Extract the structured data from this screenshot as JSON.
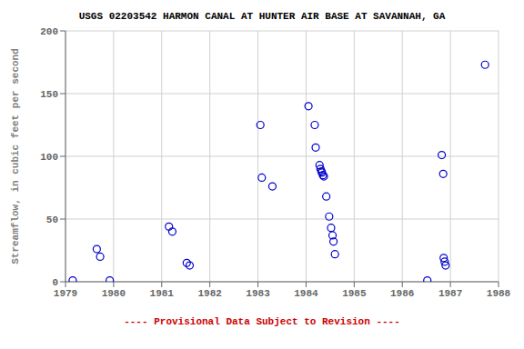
{
  "chart_data": {
    "type": "scatter",
    "title": "USGS 02203542 HARMON CANAL AT HUNTER AIR BASE AT SAVANNAH, GA",
    "ylabel": "Streamflow, in cubic feet per second",
    "annotations": [
      {
        "text": "---- Provisional Data Subject to Revision ----",
        "color": "#CC0000"
      }
    ],
    "x": [
      1979.15,
      1979.65,
      1979.72,
      1979.92,
      1981.15,
      1981.22,
      1981.52,
      1981.58,
      1983.05,
      1983.08,
      1983.3,
      1984.05,
      1984.18,
      1984.2,
      1984.28,
      1984.3,
      1984.32,
      1984.33,
      1984.35,
      1984.37,
      1984.42,
      1984.48,
      1984.52,
      1984.55,
      1984.57,
      1984.6,
      1986.52,
      1986.82,
      1986.85,
      1986.86,
      1986.88,
      1986.9,
      1987.72
    ],
    "values": [
      1,
      26,
      20,
      1,
      44,
      40,
      15,
      13,
      125,
      83,
      76,
      140,
      125,
      107,
      93,
      90,
      88,
      87,
      85,
      84,
      68,
      52,
      43,
      37,
      32,
      22,
      1,
      101,
      86,
      19,
      16,
      13,
      173
    ],
    "xlim": [
      1979,
      1988
    ],
    "ylim": [
      0,
      200
    ],
    "xticks": [
      1979,
      1980,
      1981,
      1982,
      1983,
      1984,
      1985,
      1986,
      1987,
      1988
    ],
    "yticks": [
      0,
      50,
      100,
      150,
      200
    ],
    "grid": true,
    "color": "#0000CC",
    "marker": "circle"
  }
}
